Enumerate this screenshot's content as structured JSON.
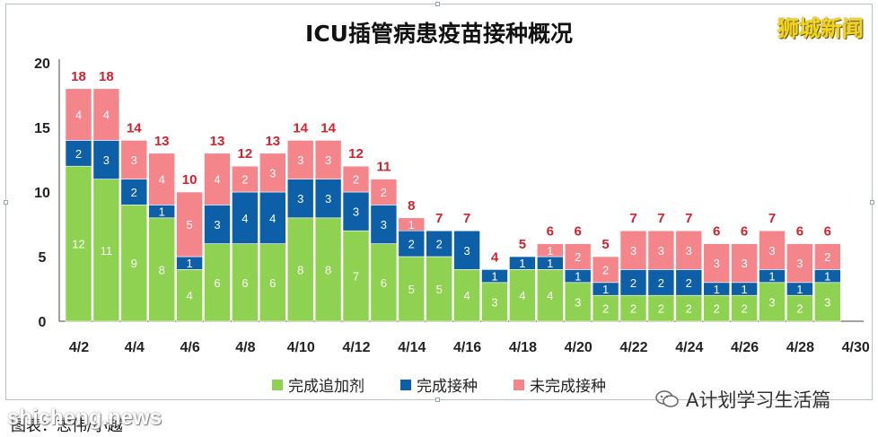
{
  "title": "ICU插管病患疫苗接种概况",
  "brand": "狮城新闻",
  "wechat_account": "A计划学习生活篇",
  "caption": "图表：志伟/小越",
  "watermark": "shicheng.news",
  "colors": {
    "booster": "#8fd150",
    "complete": "#0d5fa8",
    "incomplete": "#f4858a",
    "total_label": "#d5212e"
  },
  "legend": [
    {
      "label": "完成追加剂",
      "color": "#8fd150"
    },
    {
      "label": "完成接种",
      "color": "#0d5fa8"
    },
    {
      "label": "未完成接种",
      "color": "#f4858a"
    }
  ],
  "chart_data": {
    "type": "bar",
    "stacked": true,
    "title": "ICU插管病患疫苗接种概况",
    "categories": [
      "4/2",
      "4/3",
      "4/4",
      "4/5",
      "4/6",
      "4/7",
      "4/8",
      "4/9",
      "4/10",
      "4/11",
      "4/12",
      "4/13",
      "4/14",
      "4/15",
      "4/16",
      "4/17",
      "4/18",
      "4/19",
      "4/20",
      "4/21",
      "4/22",
      "4/23",
      "4/24",
      "4/25",
      "4/26",
      "4/27",
      "4/28",
      "4/29"
    ],
    "x_tick_labels": [
      "4/2",
      "4/4",
      "4/6",
      "4/8",
      "4/10",
      "4/12",
      "4/14",
      "4/16",
      "4/18",
      "4/20",
      "4/22",
      "4/24",
      "4/26",
      "4/28",
      "4/30"
    ],
    "series": [
      {
        "name": "完成追加剂",
        "values": [
          12,
          11,
          9,
          8,
          4,
          6,
          6,
          6,
          8,
          8,
          7,
          6,
          5,
          5,
          4,
          3,
          4,
          4,
          3,
          2,
          2,
          2,
          2,
          2,
          2,
          3,
          2,
          3
        ]
      },
      {
        "name": "完成接种",
        "values": [
          2,
          3,
          2,
          1,
          1,
          3,
          4,
          4,
          3,
          3,
          3,
          3,
          2,
          2,
          3,
          1,
          1,
          1,
          1,
          1,
          2,
          2,
          2,
          1,
          1,
          1,
          1,
          1
        ]
      },
      {
        "name": "未完成接种",
        "values": [
          4,
          4,
          3,
          4,
          5,
          4,
          2,
          3,
          3,
          3,
          2,
          2,
          1,
          0,
          0,
          0,
          0,
          1,
          2,
          2,
          3,
          3,
          3,
          3,
          3,
          3,
          3,
          2
        ]
      }
    ],
    "totals": [
      18,
      18,
      14,
      13,
      10,
      13,
      12,
      13,
      14,
      14,
      12,
      11,
      8,
      7,
      7,
      4,
      5,
      6,
      6,
      5,
      7,
      7,
      7,
      6,
      6,
      7,
      6,
      6
    ],
    "ylim": [
      0,
      20
    ],
    "y_ticks": [
      0,
      5,
      10,
      15,
      20
    ],
    "grid": false,
    "legend_position": "bottom"
  }
}
